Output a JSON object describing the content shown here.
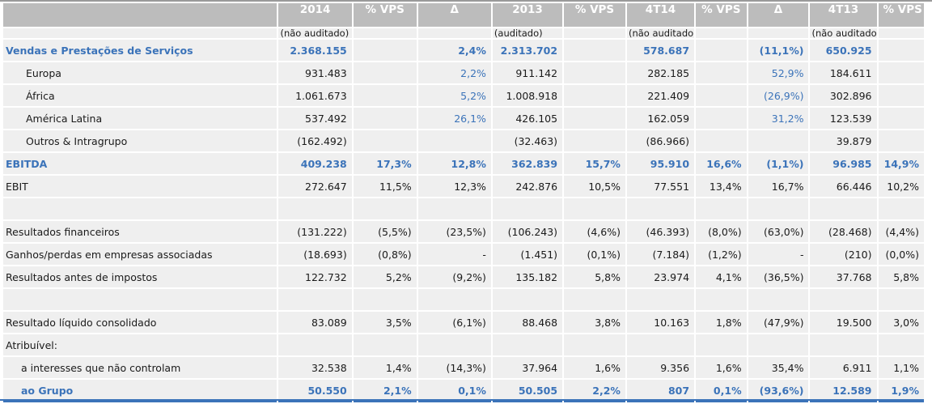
{
  "header": {
    "columns": [
      "2014",
      "% VPS",
      "Δ",
      "2013",
      "% VPS",
      "4T14",
      "% VPS",
      "Δ",
      "4T13",
      "% VPS"
    ],
    "audit_notes": [
      "(não auditado)",
      "",
      "",
      "(auditado)",
      "",
      "(não auditado)",
      "",
      "",
      "(não auditado)",
      ""
    ]
  },
  "colors": {
    "accent_blue": "#3b73b9",
    "header_gray": "#bcbcbc",
    "cell_bg": "#efefef"
  },
  "rows": [
    {
      "label": "Vendas e Prestações de Serviços",
      "values": [
        "2.368.155",
        "",
        "2,4%",
        "2.313.702",
        "",
        "578.687",
        "",
        "(11,1%)",
        "650.925",
        ""
      ]
    },
    {
      "label": "Europa",
      "values": [
        "931.483",
        "",
        "2,2%",
        "911.142",
        "",
        "282.185",
        "",
        "52,9%",
        "184.611",
        ""
      ]
    },
    {
      "label": "África",
      "values": [
        "1.061.673",
        "",
        "5,2%",
        "1.008.918",
        "",
        "221.409",
        "",
        "(26,9%)",
        "302.896",
        ""
      ]
    },
    {
      "label": "América Latina",
      "values": [
        "537.492",
        "",
        "26,1%",
        "426.105",
        "",
        "162.059",
        "",
        "31,2%",
        "123.539",
        ""
      ]
    },
    {
      "label": "Outros & Intragrupo",
      "values": [
        "(162.492)",
        "",
        "",
        "(32.463)",
        "",
        "(86.966)",
        "",
        "",
        "39.879",
        ""
      ]
    },
    {
      "label": "EBITDA",
      "values": [
        "409.238",
        "17,3%",
        "12,8%",
        "362.839",
        "15,7%",
        "95.910",
        "16,6%",
        "(1,1%)",
        "96.985",
        "14,9%"
      ]
    },
    {
      "label": "EBIT",
      "values": [
        "272.647",
        "11,5%",
        "12,3%",
        "242.876",
        "10,5%",
        "77.551",
        "13,4%",
        "16,7%",
        "66.446",
        "10,2%"
      ]
    },
    {
      "label": "",
      "values": [
        "",
        "",
        "",
        "",
        "",
        "",
        "",
        "",
        "",
        ""
      ]
    },
    {
      "label": "Resultados financeiros",
      "values": [
        "(131.222)",
        "(5,5%)",
        "(23,5%)",
        "(106.243)",
        "(4,6%)",
        "(46.393)",
        "(8,0%)",
        "(63,0%)",
        "(28.468)",
        "(4,4%)"
      ]
    },
    {
      "label": "Ganhos/perdas em empresas associadas",
      "values": [
        "(18.693)",
        "(0,8%)",
        "-",
        "(1.451)",
        "(0,1%)",
        "(7.184)",
        "(1,2%)",
        "-",
        "(210)",
        "(0,0%)"
      ]
    },
    {
      "label": "Resultados antes de impostos",
      "values": [
        "122.732",
        "5,2%",
        "(9,2%)",
        "135.182",
        "5,8%",
        "23.974",
        "4,1%",
        "(36,5%)",
        "37.768",
        "5,8%"
      ]
    },
    {
      "label": "",
      "values": [
        "",
        "",
        "",
        "",
        "",
        "",
        "",
        "",
        "",
        ""
      ]
    },
    {
      "label": "Resultado líquido consolidado",
      "values": [
        "83.089",
        "3,5%",
        "(6,1%)",
        "88.468",
        "3,8%",
        "10.163",
        "1,8%",
        "(47,9%)",
        "19.500",
        "3,0%"
      ]
    },
    {
      "label": "Atribuível:",
      "values": [
        "",
        "",
        "",
        "",
        "",
        "",
        "",
        "",
        "",
        ""
      ]
    },
    {
      "label": "a interesses que não controlam",
      "values": [
        "32.538",
        "1,4%",
        "(14,3%)",
        "37.964",
        "1,6%",
        "9.356",
        "1,6%",
        "35,4%",
        "6.911",
        "1,1%"
      ]
    },
    {
      "label": "ao Grupo",
      "values": [
        "50.550",
        "2,1%",
        "0,1%",
        "50.505",
        "2,2%",
        "807",
        "0,1%",
        "(93,6%)",
        "12.589",
        "1,9%"
      ]
    }
  ]
}
